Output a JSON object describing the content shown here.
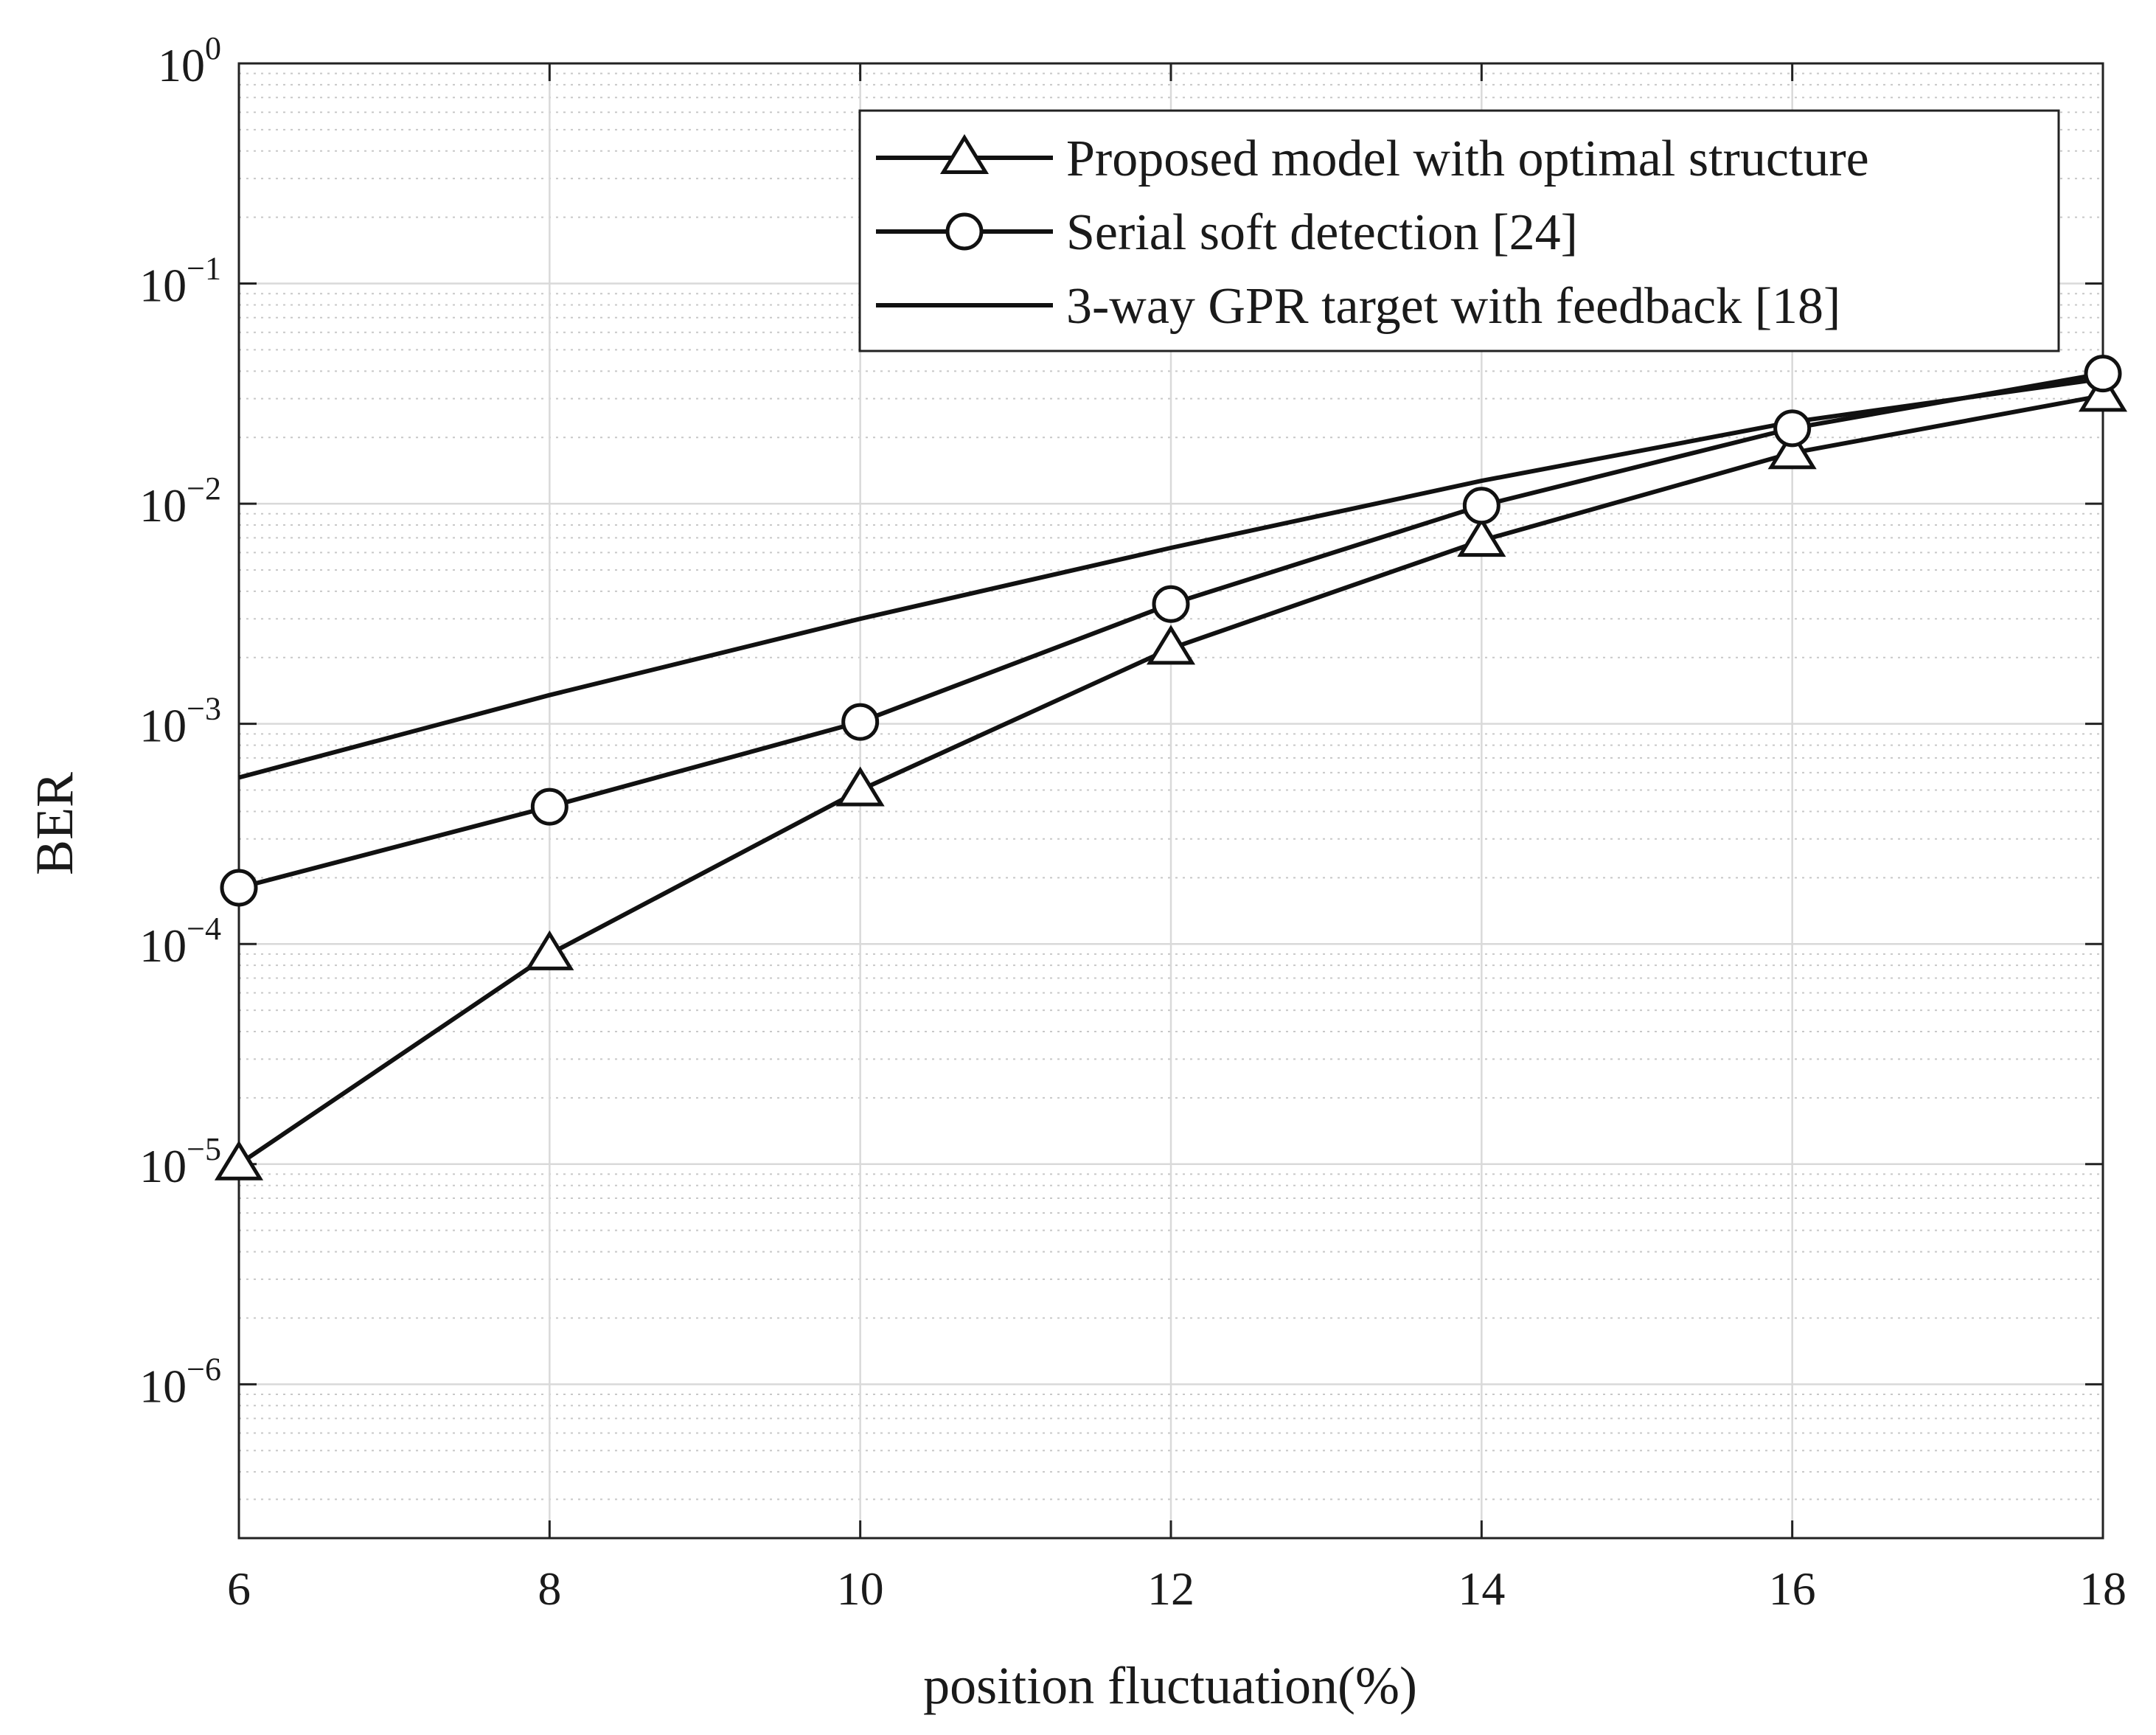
{
  "chart_data": {
    "type": "line",
    "xlabel": "position fluctuation(%)",
    "ylabel": "BER",
    "yscale": "log",
    "xlim": [
      6,
      18
    ],
    "ylim": [
      2e-07,
      1
    ],
    "xticks": [
      6,
      8,
      10,
      12,
      14,
      16,
      18
    ],
    "yticks": [
      {
        "base": "10",
        "exp": "0",
        "value": 1
      },
      {
        "base": "10",
        "exp": "−1",
        "value": 0.1
      },
      {
        "base": "10",
        "exp": "−2",
        "value": 0.01
      },
      {
        "base": "10",
        "exp": "−3",
        "value": 0.001
      },
      {
        "base": "10",
        "exp": "−4",
        "value": 0.0001
      },
      {
        "base": "10",
        "exp": "−5",
        "value": 1e-05
      },
      {
        "base": "10",
        "exp": "−6",
        "value": 1e-06
      }
    ],
    "grid": true,
    "minor_grid": true,
    "legend_position": "top-right",
    "x": [
      6,
      8,
      10,
      12,
      14,
      16,
      18
    ],
    "series": [
      {
        "name": "Proposed model with optimal structure",
        "marker": "triangle",
        "color": "#111111",
        "values": [
          1e-05,
          9e-05,
          0.0005,
          0.0022,
          0.0068,
          0.017,
          0.031
        ]
      },
      {
        "name": "Serial soft detection [24]",
        "marker": "circle",
        "color": "#111111",
        "values": [
          0.00018,
          0.00042,
          0.00102,
          0.0035,
          0.0098,
          0.022,
          0.039
        ]
      },
      {
        "name": "3-way GPR target with feedback [18]",
        "marker": "none",
        "color": "#111111",
        "values": [
          0.00057,
          0.00135,
          0.003,
          0.0063,
          0.0127,
          0.0235,
          0.037
        ]
      }
    ]
  }
}
